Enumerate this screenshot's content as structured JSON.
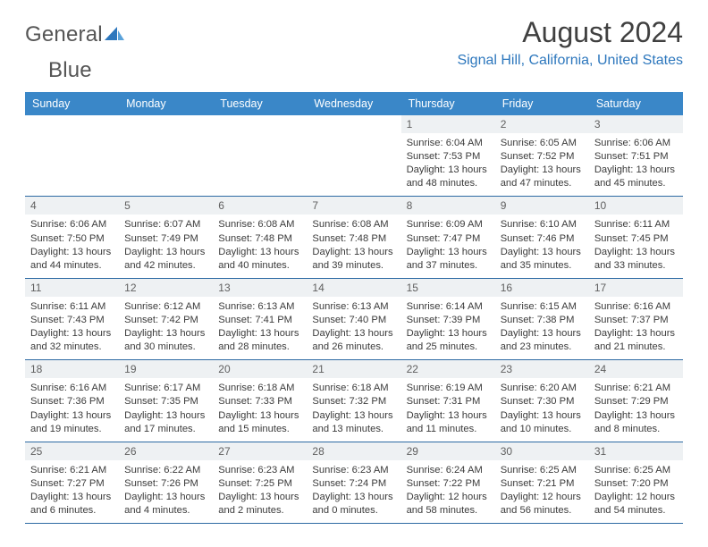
{
  "brand": {
    "word1": "General",
    "word2": "Blue",
    "color_gray": "#555555",
    "color_blue": "#2d77bd"
  },
  "title": "August 2024",
  "location": "Signal Hill, California, United States",
  "header_bg": "#3a87c8",
  "header_fg": "#ffffff",
  "divider_color": "#2d6aa3",
  "daynum_bg": "#eef1f3",
  "weekdays": [
    "Sunday",
    "Monday",
    "Tuesday",
    "Wednesday",
    "Thursday",
    "Friday",
    "Saturday"
  ],
  "weeks": [
    [
      null,
      null,
      null,
      null,
      {
        "n": "1",
        "sr": "6:04 AM",
        "ss": "7:53 PM",
        "dl": "13 hours and 48 minutes."
      },
      {
        "n": "2",
        "sr": "6:05 AM",
        "ss": "7:52 PM",
        "dl": "13 hours and 47 minutes."
      },
      {
        "n": "3",
        "sr": "6:06 AM",
        "ss": "7:51 PM",
        "dl": "13 hours and 45 minutes."
      }
    ],
    [
      {
        "n": "4",
        "sr": "6:06 AM",
        "ss": "7:50 PM",
        "dl": "13 hours and 44 minutes."
      },
      {
        "n": "5",
        "sr": "6:07 AM",
        "ss": "7:49 PM",
        "dl": "13 hours and 42 minutes."
      },
      {
        "n": "6",
        "sr": "6:08 AM",
        "ss": "7:48 PM",
        "dl": "13 hours and 40 minutes."
      },
      {
        "n": "7",
        "sr": "6:08 AM",
        "ss": "7:48 PM",
        "dl": "13 hours and 39 minutes."
      },
      {
        "n": "8",
        "sr": "6:09 AM",
        "ss": "7:47 PM",
        "dl": "13 hours and 37 minutes."
      },
      {
        "n": "9",
        "sr": "6:10 AM",
        "ss": "7:46 PM",
        "dl": "13 hours and 35 minutes."
      },
      {
        "n": "10",
        "sr": "6:11 AM",
        "ss": "7:45 PM",
        "dl": "13 hours and 33 minutes."
      }
    ],
    [
      {
        "n": "11",
        "sr": "6:11 AM",
        "ss": "7:43 PM",
        "dl": "13 hours and 32 minutes."
      },
      {
        "n": "12",
        "sr": "6:12 AM",
        "ss": "7:42 PM",
        "dl": "13 hours and 30 minutes."
      },
      {
        "n": "13",
        "sr": "6:13 AM",
        "ss": "7:41 PM",
        "dl": "13 hours and 28 minutes."
      },
      {
        "n": "14",
        "sr": "6:13 AM",
        "ss": "7:40 PM",
        "dl": "13 hours and 26 minutes."
      },
      {
        "n": "15",
        "sr": "6:14 AM",
        "ss": "7:39 PM",
        "dl": "13 hours and 25 minutes."
      },
      {
        "n": "16",
        "sr": "6:15 AM",
        "ss": "7:38 PM",
        "dl": "13 hours and 23 minutes."
      },
      {
        "n": "17",
        "sr": "6:16 AM",
        "ss": "7:37 PM",
        "dl": "13 hours and 21 minutes."
      }
    ],
    [
      {
        "n": "18",
        "sr": "6:16 AM",
        "ss": "7:36 PM",
        "dl": "13 hours and 19 minutes."
      },
      {
        "n": "19",
        "sr": "6:17 AM",
        "ss": "7:35 PM",
        "dl": "13 hours and 17 minutes."
      },
      {
        "n": "20",
        "sr": "6:18 AM",
        "ss": "7:33 PM",
        "dl": "13 hours and 15 minutes."
      },
      {
        "n": "21",
        "sr": "6:18 AM",
        "ss": "7:32 PM",
        "dl": "13 hours and 13 minutes."
      },
      {
        "n": "22",
        "sr": "6:19 AM",
        "ss": "7:31 PM",
        "dl": "13 hours and 11 minutes."
      },
      {
        "n": "23",
        "sr": "6:20 AM",
        "ss": "7:30 PM",
        "dl": "13 hours and 10 minutes."
      },
      {
        "n": "24",
        "sr": "6:21 AM",
        "ss": "7:29 PM",
        "dl": "13 hours and 8 minutes."
      }
    ],
    [
      {
        "n": "25",
        "sr": "6:21 AM",
        "ss": "7:27 PM",
        "dl": "13 hours and 6 minutes."
      },
      {
        "n": "26",
        "sr": "6:22 AM",
        "ss": "7:26 PM",
        "dl": "13 hours and 4 minutes."
      },
      {
        "n": "27",
        "sr": "6:23 AM",
        "ss": "7:25 PM",
        "dl": "13 hours and 2 minutes."
      },
      {
        "n": "28",
        "sr": "6:23 AM",
        "ss": "7:24 PM",
        "dl": "13 hours and 0 minutes."
      },
      {
        "n": "29",
        "sr": "6:24 AM",
        "ss": "7:22 PM",
        "dl": "12 hours and 58 minutes."
      },
      {
        "n": "30",
        "sr": "6:25 AM",
        "ss": "7:21 PM",
        "dl": "12 hours and 56 minutes."
      },
      {
        "n": "31",
        "sr": "6:25 AM",
        "ss": "7:20 PM",
        "dl": "12 hours and 54 minutes."
      }
    ]
  ],
  "labels": {
    "sunrise": "Sunrise: ",
    "sunset": "Sunset: ",
    "daylight": "Daylight: "
  }
}
